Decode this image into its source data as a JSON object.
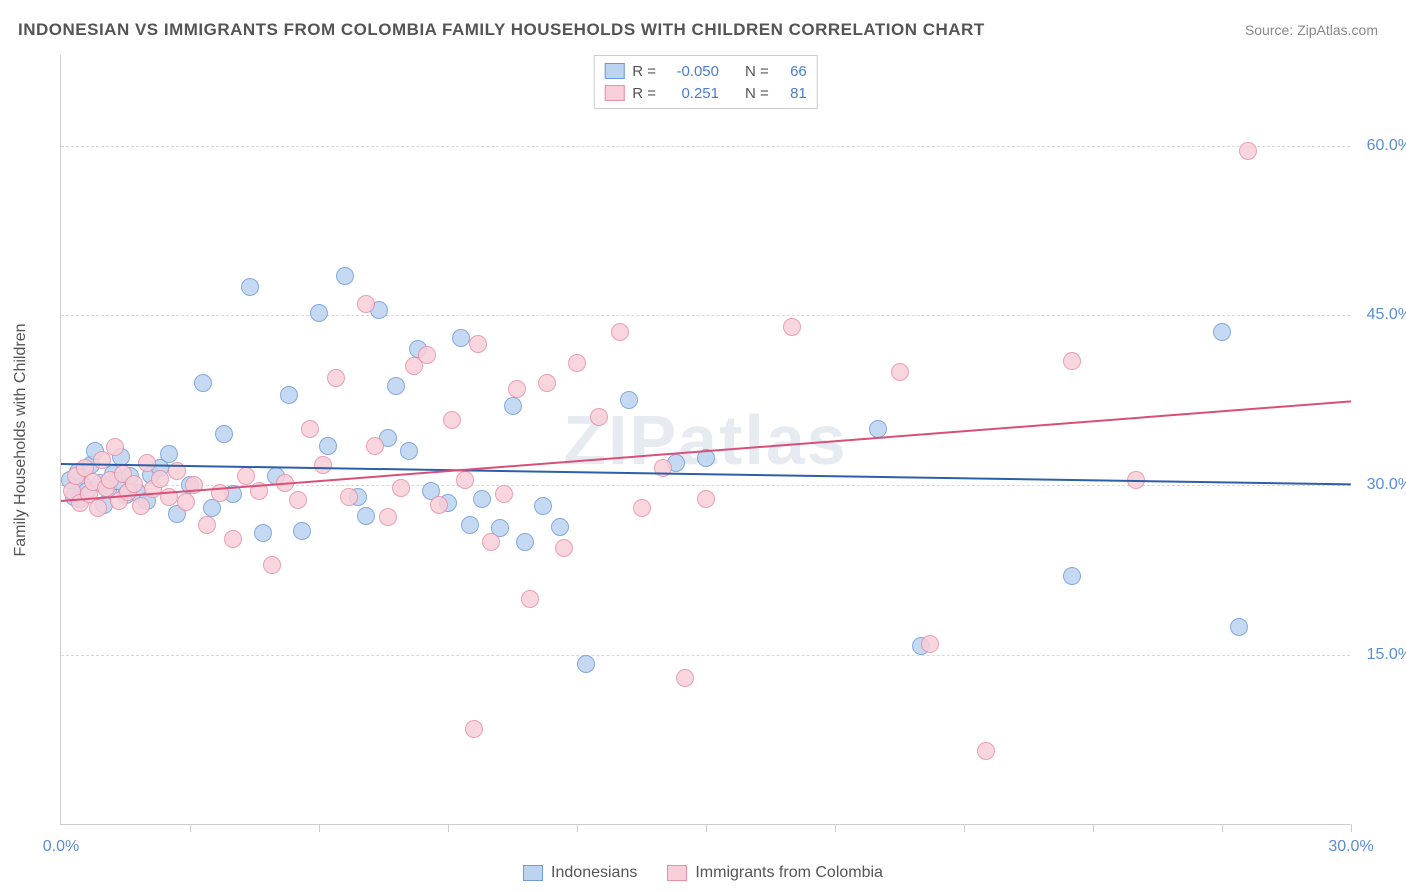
{
  "title": "INDONESIAN VS IMMIGRANTS FROM COLOMBIA FAMILY HOUSEHOLDS WITH CHILDREN CORRELATION CHART",
  "source": "Source: ZipAtlas.com",
  "watermark": "ZIPatlas",
  "chart": {
    "type": "scatter",
    "ylabel": "Family Households with Children",
    "xlim": [
      0,
      30
    ],
    "ylim": [
      0,
      68
    ],
    "yticks": [
      {
        "v": 15,
        "label": "15.0%"
      },
      {
        "v": 30,
        "label": "30.0%"
      },
      {
        "v": 45,
        "label": "45.0%"
      },
      {
        "v": 60,
        "label": "60.0%"
      }
    ],
    "xticks_at": [
      3,
      6,
      9,
      12,
      15,
      18,
      21,
      24,
      27,
      30
    ],
    "xtick_labels": [
      {
        "v": 0,
        "label": "0.0%"
      },
      {
        "v": 30,
        "label": "30.0%"
      }
    ],
    "background_color": "#ffffff",
    "grid_color": "#d8d8d8",
    "marker_radius": 9,
    "marker_border_width": 1.5,
    "trend_line_width": 2,
    "series": [
      {
        "name": "Indonesians",
        "fill": "#bcd4f0",
        "stroke": "#6f9bd8",
        "trend_color": "#2d5fa8",
        "r": -0.05,
        "n": 66,
        "trend": {
          "x1": 0,
          "y1": 32.0,
          "x2": 30,
          "y2": 30.2
        },
        "points": [
          [
            0.2,
            30.5
          ],
          [
            0.3,
            29.0
          ],
          [
            0.4,
            31.2
          ],
          [
            0.45,
            28.8
          ],
          [
            0.5,
            30.0
          ],
          [
            0.6,
            29.5
          ],
          [
            0.7,
            31.8
          ],
          [
            0.8,
            33.0
          ],
          [
            0.9,
            30.2
          ],
          [
            1.0,
            28.3
          ],
          [
            1.1,
            29.7
          ],
          [
            1.2,
            31.0
          ],
          [
            1.3,
            30.4
          ],
          [
            1.4,
            32.5
          ],
          [
            1.5,
            29.1
          ],
          [
            1.6,
            30.8
          ],
          [
            1.8,
            29.3
          ],
          [
            2.0,
            28.6
          ],
          [
            2.1,
            30.9
          ],
          [
            2.3,
            31.5
          ],
          [
            2.5,
            32.8
          ],
          [
            2.7,
            27.5
          ],
          [
            3.0,
            30.0
          ],
          [
            3.3,
            39.0
          ],
          [
            3.5,
            28.0
          ],
          [
            3.8,
            34.5
          ],
          [
            4.0,
            29.2
          ],
          [
            4.4,
            47.5
          ],
          [
            4.7,
            25.8
          ],
          [
            5.0,
            30.8
          ],
          [
            5.3,
            38.0
          ],
          [
            5.6,
            26.0
          ],
          [
            6.0,
            45.2
          ],
          [
            6.2,
            33.5
          ],
          [
            6.6,
            48.5
          ],
          [
            6.9,
            29.0
          ],
          [
            7.1,
            27.3
          ],
          [
            7.4,
            45.5
          ],
          [
            7.6,
            34.2
          ],
          [
            7.8,
            38.8
          ],
          [
            8.1,
            33.0
          ],
          [
            8.3,
            42.0
          ],
          [
            8.6,
            29.5
          ],
          [
            9.0,
            28.4
          ],
          [
            9.3,
            43.0
          ],
          [
            9.5,
            26.5
          ],
          [
            9.8,
            28.8
          ],
          [
            10.2,
            26.2
          ],
          [
            10.5,
            37.0
          ],
          [
            10.8,
            25.0
          ],
          [
            11.2,
            28.2
          ],
          [
            11.6,
            26.3
          ],
          [
            12.2,
            14.2
          ],
          [
            13.2,
            37.5
          ],
          [
            14.3,
            32.0
          ],
          [
            15.0,
            32.4
          ],
          [
            19.0,
            35.0
          ],
          [
            20.0,
            15.8
          ],
          [
            23.5,
            22.0
          ],
          [
            27.0,
            43.5
          ],
          [
            27.4,
            17.5
          ]
        ]
      },
      {
        "name": "Immigrants from Colombia",
        "fill": "#f8cfd9",
        "stroke": "#e78fa6",
        "trend_color": "#d94f78",
        "r": 0.251,
        "n": 81,
        "trend": {
          "x1": 0,
          "y1": 28.7,
          "x2": 30,
          "y2": 37.5
        },
        "points": [
          [
            0.25,
            29.5
          ],
          [
            0.35,
            30.8
          ],
          [
            0.45,
            28.4
          ],
          [
            0.55,
            31.5
          ],
          [
            0.65,
            29.2
          ],
          [
            0.75,
            30.3
          ],
          [
            0.85,
            28.0
          ],
          [
            0.95,
            32.2
          ],
          [
            1.05,
            29.8
          ],
          [
            1.15,
            30.5
          ],
          [
            1.25,
            33.4
          ],
          [
            1.35,
            28.6
          ],
          [
            1.45,
            31.0
          ],
          [
            1.55,
            29.4
          ],
          [
            1.7,
            30.1
          ],
          [
            1.85,
            28.2
          ],
          [
            2.0,
            32.0
          ],
          [
            2.15,
            29.7
          ],
          [
            2.3,
            30.6
          ],
          [
            2.5,
            29.0
          ],
          [
            2.7,
            31.3
          ],
          [
            2.9,
            28.5
          ],
          [
            3.1,
            30.0
          ],
          [
            3.4,
            26.5
          ],
          [
            3.7,
            29.3
          ],
          [
            4.0,
            25.3
          ],
          [
            4.3,
            30.8
          ],
          [
            4.6,
            29.5
          ],
          [
            4.9,
            23.0
          ],
          [
            5.2,
            30.2
          ],
          [
            5.5,
            28.7
          ],
          [
            5.8,
            35.0
          ],
          [
            6.1,
            31.8
          ],
          [
            6.4,
            39.5
          ],
          [
            6.7,
            29.0
          ],
          [
            7.1,
            46.0
          ],
          [
            7.3,
            33.5
          ],
          [
            7.6,
            27.2
          ],
          [
            7.9,
            29.8
          ],
          [
            8.2,
            40.5
          ],
          [
            8.5,
            41.5
          ],
          [
            8.8,
            28.3
          ],
          [
            9.1,
            35.8
          ],
          [
            9.4,
            30.5
          ],
          [
            9.7,
            42.5
          ],
          [
            10.0,
            25.0
          ],
          [
            10.3,
            29.2
          ],
          [
            10.6,
            38.5
          ],
          [
            10.9,
            20.0
          ],
          [
            11.3,
            39.0
          ],
          [
            11.7,
            24.5
          ],
          [
            12.0,
            40.8
          ],
          [
            12.5,
            36.0
          ],
          [
            13.0,
            43.5
          ],
          [
            13.5,
            28.0
          ],
          [
            14.0,
            31.5
          ],
          [
            14.5,
            13.0
          ],
          [
            15.0,
            28.8
          ],
          [
            9.6,
            8.5
          ],
          [
            17.0,
            44.0
          ],
          [
            19.5,
            40.0
          ],
          [
            20.2,
            16.0
          ],
          [
            21.5,
            6.5
          ],
          [
            23.5,
            41.0
          ],
          [
            25.0,
            30.5
          ],
          [
            27.6,
            59.5
          ]
        ]
      }
    ]
  },
  "top_legend": {
    "r_label": "R =",
    "n_label": "N =",
    "rows": [
      {
        "swatch_fill": "#bcd4f0",
        "swatch_stroke": "#6f9bd8",
        "r": "-0.050",
        "n": "66"
      },
      {
        "swatch_fill": "#f8cfd9",
        "swatch_stroke": "#e78fa6",
        "r": "0.251",
        "n": "81"
      }
    ]
  },
  "bottom_legend": [
    {
      "swatch_fill": "#bcd4f0",
      "swatch_stroke": "#6f9bd8",
      "label": "Indonesians"
    },
    {
      "swatch_fill": "#f8cfd9",
      "swatch_stroke": "#e78fa6",
      "label": "Immigrants from Colombia"
    }
  ]
}
